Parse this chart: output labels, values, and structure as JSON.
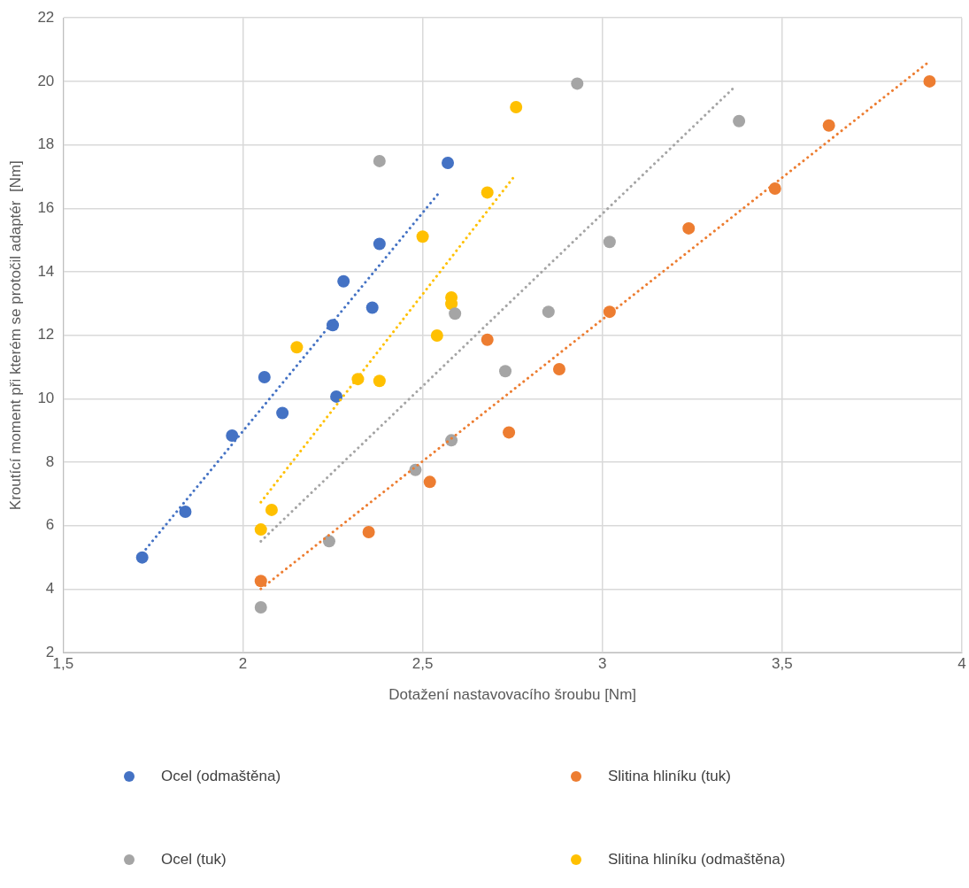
{
  "chart_data": {
    "type": "scatter",
    "xlabel": "Dotažení nastavovacího šroubu [Nm]",
    "ylabel": "Kroutící moment při kterém se protočil adaptér  [Nm]",
    "xlim": [
      1.5,
      4
    ],
    "ylim": [
      2,
      22
    ],
    "xticks": [
      {
        "value": 1.5,
        "label": "1,5"
      },
      2,
      {
        "value": 2.5,
        "label": "2,5"
      },
      3,
      {
        "value": 3.5,
        "label": "3,5"
      },
      4
    ],
    "yticks": [
      2,
      4,
      6,
      8,
      10,
      12,
      14,
      16,
      18,
      20,
      22
    ],
    "grid": true,
    "legend": "bottom",
    "marker": "circle",
    "series": [
      {
        "name": "Ocel (odmaštěna)",
        "color": "#4472c4",
        "x": [
          1.72,
          1.84,
          1.97,
          2.06,
          2.11,
          2.25,
          2.26,
          2.28,
          2.36,
          2.38,
          2.57
        ],
        "values": [
          5.0,
          6.44,
          8.84,
          10.68,
          9.55,
          12.32,
          10.07,
          13.7,
          12.87,
          14.88,
          17.43
        ]
      },
      {
        "name": "Slitina hliníku (tuk)",
        "color": "#ed7d31",
        "x": [
          2.05,
          2.35,
          2.52,
          2.68,
          2.74,
          2.88,
          3.02,
          3.24,
          3.48,
          3.63,
          3.91
        ],
        "values": [
          4.26,
          5.8,
          7.38,
          11.86,
          8.94,
          10.93,
          12.74,
          15.37,
          16.62,
          18.61,
          20.0
        ]
      },
      {
        "name": "Ocel (tuk)",
        "color": "#a5a5a5",
        "x": [
          2.05,
          2.24,
          2.48,
          2.58,
          2.59,
          2.73,
          2.38,
          2.85,
          2.93,
          3.02,
          3.38
        ],
        "values": [
          3.43,
          5.51,
          7.76,
          8.69,
          12.68,
          10.87,
          17.49,
          12.74,
          19.93,
          14.94,
          18.75
        ]
      },
      {
        "name": "Slitina hliníku (odmaštěna)",
        "color": "#ffc000",
        "x": [
          2.05,
          2.08,
          2.15,
          2.32,
          2.38,
          2.5,
          2.54,
          2.58,
          2.58,
          2.68,
          2.76
        ],
        "values": [
          5.88,
          6.5,
          11.62,
          10.62,
          10.56,
          15.11,
          11.99,
          13.19,
          12.99,
          16.5,
          19.19
        ]
      },
      {
        "type": "line",
        "color": "#4472c4",
        "line_style": "dotted",
        "marker": "none",
        "x": [
          1.73,
          2.55
        ],
        "values": [
          5.26,
          16.55
        ]
      },
      {
        "type": "line",
        "color": "#ed7d31",
        "line_style": "dotted",
        "marker": "none",
        "x": [
          2.05,
          3.91
        ],
        "values": [
          4.01,
          20.63
        ]
      },
      {
        "type": "line",
        "color": "#a5a5a5",
        "line_style": "dotted",
        "marker": "none",
        "x": [
          2.05,
          3.37
        ],
        "values": [
          5.51,
          19.85
        ]
      },
      {
        "type": "line",
        "color": "#ffc000",
        "line_style": "dotted",
        "marker": "none",
        "x": [
          2.05,
          2.76
        ],
        "values": [
          6.74,
          17.08
        ]
      }
    ]
  }
}
